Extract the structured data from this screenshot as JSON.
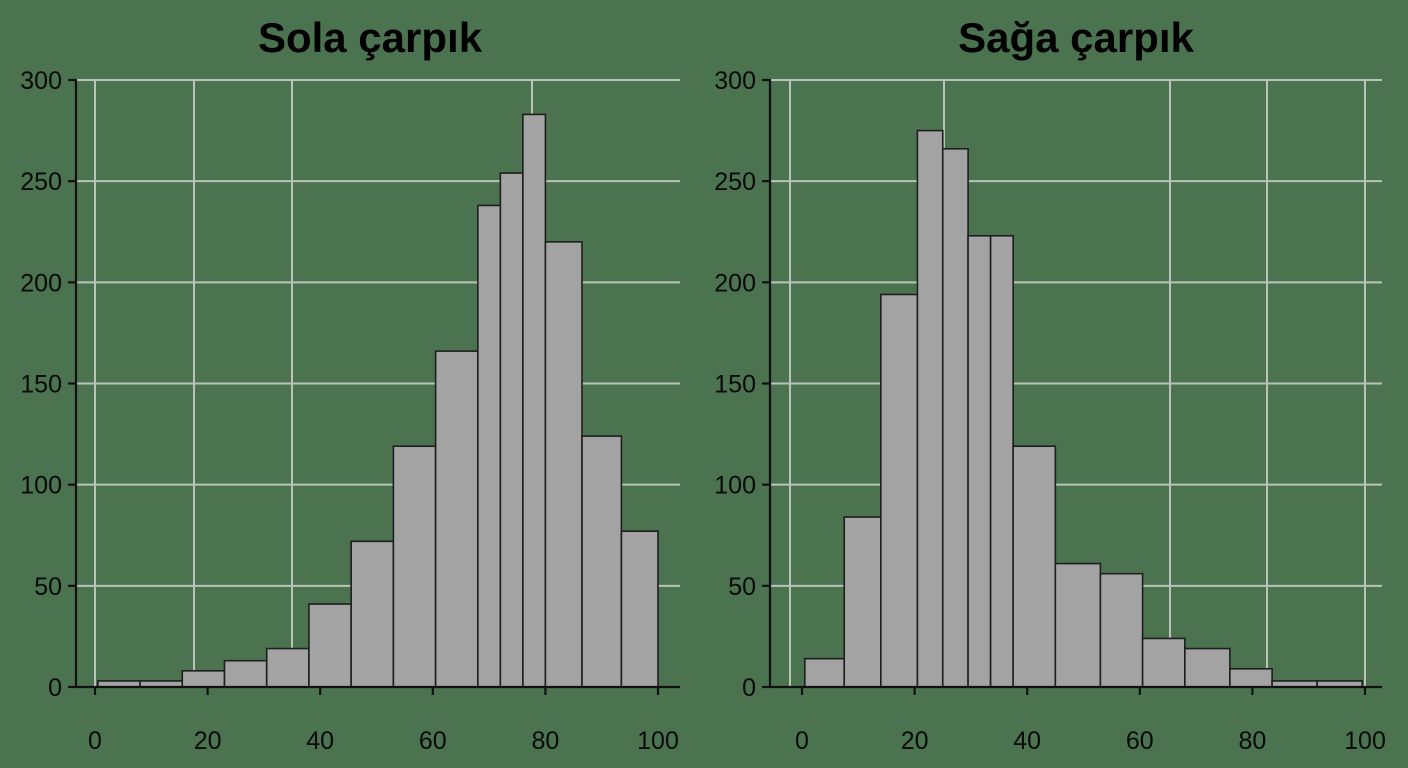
{
  "colors": {
    "background": "#4b7350",
    "bar_fill": "#a3a3a3",
    "bar_edge": "#1e1e1e",
    "grid": "#b9c4b8"
  },
  "chart_data": [
    {
      "type": "bar",
      "title": "Sola çarpık",
      "xlabel": "",
      "ylabel": "",
      "xlim": [
        0,
        100
      ],
      "ylim": [
        0,
        300
      ],
      "xticks": [
        0,
        20,
        40,
        60,
        80,
        100
      ],
      "yticks": [
        0,
        50,
        100,
        150,
        200,
        250,
        300
      ],
      "grid": true,
      "bins": [
        {
          "x0": 0.5,
          "x1": 8,
          "value": 3
        },
        {
          "x0": 8,
          "x1": 15.5,
          "value": 3
        },
        {
          "x0": 15.5,
          "x1": 23,
          "value": 8
        },
        {
          "x0": 23,
          "x1": 30.5,
          "value": 13
        },
        {
          "x0": 30.5,
          "x1": 38,
          "value": 19
        },
        {
          "x0": 38,
          "x1": 45.5,
          "value": 41
        },
        {
          "x0": 45.5,
          "x1": 53,
          "value": 72
        },
        {
          "x0": 53,
          "x1": 60.5,
          "value": 119
        },
        {
          "x0": 60.5,
          "x1": 68,
          "value": 166
        },
        {
          "x0": 68,
          "x1": 72,
          "value": 238
        },
        {
          "x0": 72,
          "x1": 76,
          "value": 254
        },
        {
          "x0": 76,
          "x1": 80,
          "value": 283
        },
        {
          "x0": 80,
          "x1": 86.5,
          "value": 220
        },
        {
          "x0": 86.5,
          "x1": 93.5,
          "value": 124
        },
        {
          "x0": 93.5,
          "x1": 100,
          "value": 77
        }
      ]
    },
    {
      "type": "bar",
      "title": "Sağa çarpık",
      "xlabel": "",
      "ylabel": "",
      "xlim": [
        0,
        100
      ],
      "ylim": [
        0,
        300
      ],
      "xticks": [
        0,
        20,
        40,
        60,
        80,
        100
      ],
      "yticks": [
        0,
        50,
        100,
        150,
        200,
        250,
        300
      ],
      "grid": true,
      "bins": [
        {
          "x0": 0.5,
          "x1": 7.5,
          "value": 14
        },
        {
          "x0": 7.5,
          "x1": 14,
          "value": 84
        },
        {
          "x0": 14,
          "x1": 20.5,
          "value": 194
        },
        {
          "x0": 20.5,
          "x1": 25,
          "value": 275
        },
        {
          "x0": 25,
          "x1": 29.5,
          "value": 266
        },
        {
          "x0": 29.5,
          "x1": 33.5,
          "value": 223
        },
        {
          "x0": 33.5,
          "x1": 37.5,
          "value": 223
        },
        {
          "x0": 37.5,
          "x1": 45,
          "value": 119
        },
        {
          "x0": 45,
          "x1": 53,
          "value": 61
        },
        {
          "x0": 53,
          "x1": 60.5,
          "value": 56
        },
        {
          "x0": 60.5,
          "x1": 68,
          "value": 24
        },
        {
          "x0": 68,
          "x1": 76,
          "value": 19
        },
        {
          "x0": 76,
          "x1": 83.5,
          "value": 9
        },
        {
          "x0": 83.5,
          "x1": 91.5,
          "value": 3
        },
        {
          "x0": 91.5,
          "x1": 99.5,
          "value": 3
        }
      ]
    }
  ]
}
